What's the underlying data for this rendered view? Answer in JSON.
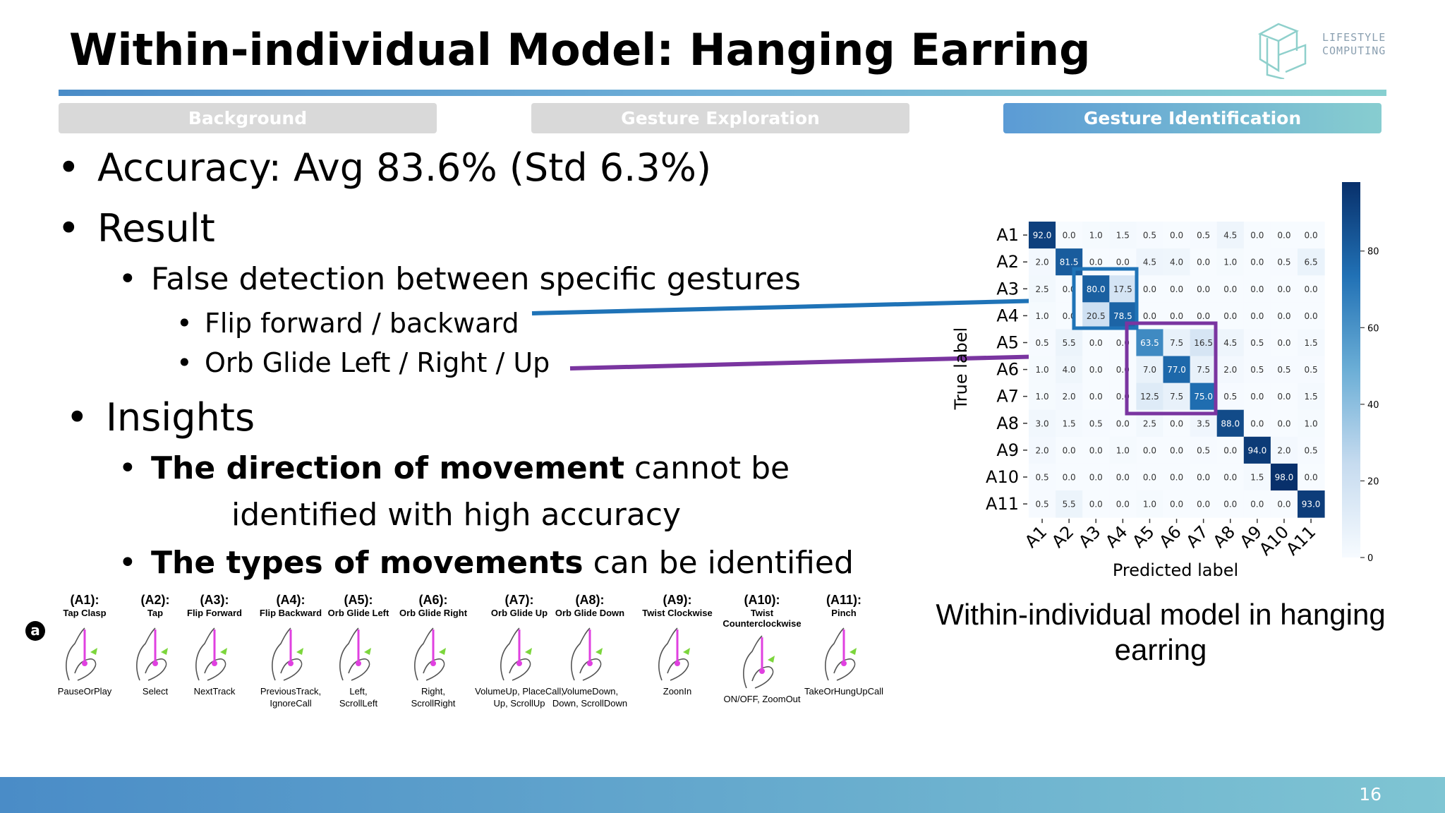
{
  "title": "Within-individual Model: Hanging Earring",
  "logo": {
    "line1": "LIFESTYLE",
    "line2": "COMPUTING"
  },
  "tabs": [
    {
      "label": "Background",
      "active": false
    },
    {
      "label": "Gesture Exploration",
      "active": false
    },
    {
      "label": "Gesture Identification",
      "active": true
    }
  ],
  "bullets": {
    "accuracy": "Accuracy: Avg 83.6% (Std 6.3%)",
    "result": "Result",
    "false_detection": "False detection between specific gestures",
    "flip": "Flip  forward / backward",
    "orb": "Orb  Glide  Left / Right / Up",
    "insights": "Insights",
    "direction_bold": "The direction of movement",
    "direction_rest": " cannot be",
    "direction_line2": "identified with high accuracy",
    "types_bold": "The types of movements",
    "types_rest": " can be identified"
  },
  "gestures_marker": "a",
  "gestures": [
    {
      "code": "(A1):",
      "name": "Tap Clasp",
      "func": [
        "PauseOrPlay"
      ]
    },
    {
      "code": "(A2):",
      "name": "Tap",
      "func": [
        "Select"
      ]
    },
    {
      "code": "(A3):",
      "name": "Flip Forward",
      "func": [
        "NextTrack"
      ]
    },
    {
      "code": "(A4):",
      "name": "Flip Backward",
      "func": [
        "PreviousTrack,",
        "IgnoreCall"
      ]
    },
    {
      "code": "(A5):",
      "name": "Orb Glide Left",
      "func": [
        "Left,",
        "ScrollLeft"
      ]
    },
    {
      "code": "(A6):",
      "name": "Orb Glide Right",
      "func": [
        "Right,",
        "ScrollRight"
      ]
    },
    {
      "code": "(A7):",
      "name": "Orb Glide Up",
      "func": [
        "VolumeUp, PlaceCall,",
        "Up, ScrollUp"
      ]
    },
    {
      "code": "(A8):",
      "name": "Orb Glide Down",
      "func": [
        "VolumeDown,",
        "Down, ScrollDown"
      ]
    },
    {
      "code": "(A9):",
      "name": "Twist Clockwise",
      "func": [
        "ZoonIn"
      ]
    },
    {
      "code": "(A10):",
      "name": "Twist Counterclockwise",
      "func": [
        "ON/OFF, ZoomOut"
      ]
    },
    {
      "code": "(A11):",
      "name": "Pinch",
      "func": [
        "TakeOrHungUpCall"
      ]
    }
  ],
  "colors": {
    "highlight_blue": "#1f73b7",
    "highlight_purple": "#7a35a0"
  },
  "chart_data": {
    "type": "heatmap",
    "row_labels": [
      "A1",
      "A2",
      "A3",
      "A4",
      "A5",
      "A6",
      "A7",
      "A8",
      "A9",
      "A10",
      "A11"
    ],
    "col_labels": [
      "A1",
      "A2",
      "A3",
      "A4",
      "A5",
      "A6",
      "A7",
      "A8",
      "A9",
      "A10",
      "A11"
    ],
    "xlabel": "Predicted label",
    "ylabel": "True label",
    "values": [
      [
        92.0,
        0.0,
        1.0,
        1.5,
        0.5,
        0.0,
        0.5,
        4.5,
        0.0,
        0.0,
        0.0
      ],
      [
        2.0,
        81.5,
        0.0,
        0.0,
        4.5,
        4.0,
        0.0,
        1.0,
        0.0,
        0.5,
        6.5
      ],
      [
        2.5,
        0.0,
        80.0,
        17.5,
        0.0,
        0.0,
        0.0,
        0.0,
        0.0,
        0.0,
        0.0
      ],
      [
        1.0,
        0.0,
        20.5,
        78.5,
        0.0,
        0.0,
        0.0,
        0.0,
        0.0,
        0.0,
        0.0
      ],
      [
        0.5,
        5.5,
        0.0,
        0.0,
        63.5,
        7.5,
        16.5,
        4.5,
        0.5,
        0.0,
        1.5
      ],
      [
        1.0,
        4.0,
        0.0,
        0.0,
        7.0,
        77.0,
        7.5,
        2.0,
        0.5,
        0.5,
        0.5
      ],
      [
        1.0,
        2.0,
        0.0,
        0.0,
        12.5,
        7.5,
        75.0,
        0.5,
        0.0,
        0.0,
        1.5
      ],
      [
        3.0,
        1.5,
        0.5,
        0.0,
        2.5,
        0.0,
        3.5,
        88.0,
        0.0,
        0.0,
        1.0
      ],
      [
        2.0,
        0.0,
        0.0,
        1.0,
        0.0,
        0.0,
        0.5,
        0.0,
        94.0,
        2.0,
        0.5
      ],
      [
        0.5,
        0.0,
        0.0,
        0.0,
        0.0,
        0.0,
        0.0,
        0.0,
        1.5,
        98.0,
        0.0
      ],
      [
        0.5,
        5.5,
        0.0,
        0.0,
        1.0,
        0.0,
        0.0,
        0.0,
        0.0,
        0.0,
        93.0
      ]
    ],
    "colorbar": {
      "min": 0,
      "max": 98,
      "ticks": [
        0,
        20,
        40,
        60,
        80
      ]
    },
    "colormap": "Blues"
  },
  "caption": {
    "line1": "Within-individual model in hanging",
    "line2": "earring"
  },
  "page_number": "16"
}
